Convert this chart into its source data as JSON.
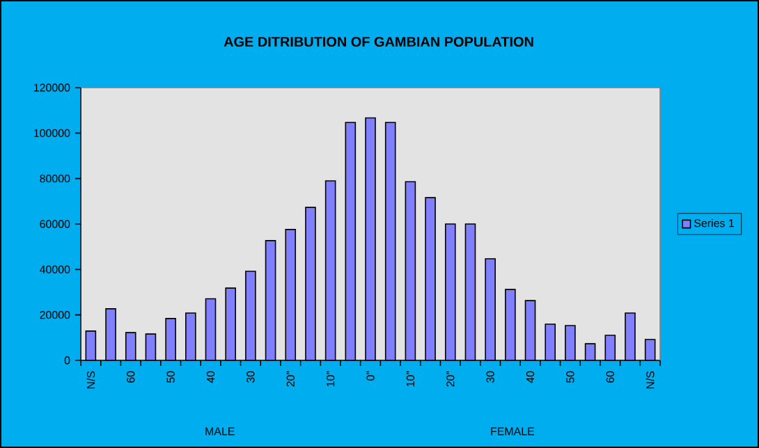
{
  "chart_data": {
    "type": "bar",
    "title": "AGE DITRIBUTION OF GAMBIAN POPULATION",
    "categories": [
      "N/S",
      null,
      "60",
      null,
      "50",
      null,
      "40",
      null,
      "30",
      null,
      "20\"",
      null,
      "10\"",
      null,
      "0\"",
      null,
      "10\"",
      null,
      "20\"",
      null,
      "30",
      null,
      "40",
      null,
      "50",
      null,
      "60",
      null,
      "N/S"
    ],
    "series": [
      {
        "name": "Series 1",
        "color": "#8080ff",
        "values": [
          12900,
          22700,
          12200,
          11600,
          18400,
          20800,
          27100,
          31800,
          39200,
          52700,
          57600,
          67300,
          79000,
          104700,
          106700,
          104700,
          78600,
          71600,
          60000,
          60000,
          44700,
          31200,
          26300,
          15900,
          15300,
          7300,
          11000,
          20800,
          9200
        ]
      }
    ],
    "ylim": [
      0,
      120000
    ],
    "yticks": [
      0,
      20000,
      40000,
      60000,
      80000,
      100000,
      120000
    ],
    "legend": "right",
    "annotations": [
      "MALE",
      "FEMALE"
    ]
  }
}
